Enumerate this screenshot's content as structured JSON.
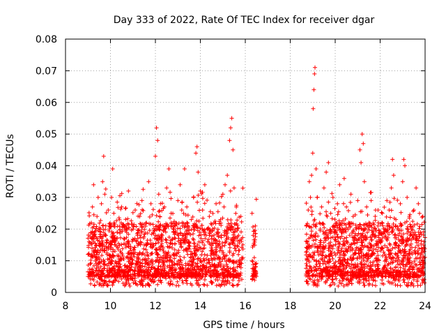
{
  "chart_data": {
    "type": "scatter",
    "title": "Day 333 of 2022, Rate Of TEC Index for receiver dgar",
    "xlabel": "GPS time / hours",
    "ylabel": "ROTI / TECUs",
    "xlim": [
      8,
      24
    ],
    "ylim": [
      0,
      0.08
    ],
    "xticks": [
      8,
      10,
      12,
      14,
      16,
      18,
      20,
      22,
      24
    ],
    "xtick_labels": [
      "8",
      "10",
      "12",
      "14",
      "16",
      "18",
      "20",
      "22",
      "24"
    ],
    "yticks": [
      0,
      0.01,
      0.02,
      0.03,
      0.04,
      0.05,
      0.06,
      0.07,
      0.08
    ],
    "ytick_labels": [
      "0",
      "0.01",
      "0.02",
      "0.03",
      "0.04",
      "0.05",
      "0.06",
      "0.07",
      "0.08"
    ],
    "grid": true,
    "marker": "+",
    "color": "#ff0000",
    "series": [
      {
        "name": "ROTI",
        "points": [
          [
            9.0,
            0.012
          ],
          [
            9.05,
            0.016
          ],
          [
            9.1,
            0.009
          ],
          [
            9.15,
            0.022
          ],
          [
            9.2,
            0.027
          ],
          [
            9.25,
            0.034
          ],
          [
            9.3,
            0.019
          ],
          [
            9.35,
            0.011
          ],
          [
            9.4,
            0.024
          ],
          [
            9.45,
            0.03
          ],
          [
            9.5,
            0.015
          ],
          [
            9.55,
            0.02
          ],
          [
            9.6,
            0.028
          ],
          [
            9.65,
            0.035
          ],
          [
            9.7,
            0.043
          ],
          [
            9.75,
            0.031
          ],
          [
            9.8,
            0.018
          ],
          [
            9.85,
            0.012
          ],
          [
            9.9,
            0.026
          ],
          [
            9.95,
            0.021
          ],
          [
            10.0,
            0.016
          ],
          [
            10.05,
            0.03
          ],
          [
            10.1,
            0.039
          ],
          [
            10.15,
            0.025
          ],
          [
            10.2,
            0.013
          ],
          [
            10.3,
            0.019
          ],
          [
            10.4,
            0.023
          ],
          [
            10.5,
            0.027
          ],
          [
            10.6,
            0.017
          ],
          [
            10.7,
            0.021
          ],
          [
            10.8,
            0.032
          ],
          [
            10.9,
            0.014
          ],
          [
            11.0,
            0.02
          ],
          [
            11.1,
            0.026
          ],
          [
            11.2,
            0.018
          ],
          [
            11.3,
            0.024
          ],
          [
            11.4,
            0.029
          ],
          [
            11.5,
            0.015
          ],
          [
            11.6,
            0.022
          ],
          [
            11.7,
            0.035
          ],
          [
            11.8,
            0.028
          ],
          [
            11.9,
            0.019
          ],
          [
            12.0,
            0.043
          ],
          [
            12.05,
            0.052
          ],
          [
            12.1,
            0.048
          ],
          [
            12.15,
            0.031
          ],
          [
            12.2,
            0.024
          ],
          [
            12.3,
            0.018
          ],
          [
            12.4,
            0.027
          ],
          [
            12.5,
            0.033
          ],
          [
            12.6,
            0.039
          ],
          [
            12.7,
            0.025
          ],
          [
            12.8,
            0.019
          ],
          [
            12.9,
            0.022
          ],
          [
            13.0,
            0.029
          ],
          [
            13.1,
            0.034
          ],
          [
            13.2,
            0.021
          ],
          [
            13.3,
            0.039
          ],
          [
            13.4,
            0.027
          ],
          [
            13.5,
            0.016
          ],
          [
            13.6,
            0.023
          ],
          [
            13.7,
            0.03
          ],
          [
            13.8,
            0.044
          ],
          [
            13.85,
            0.046
          ],
          [
            13.9,
            0.038
          ],
          [
            14.0,
            0.032
          ],
          [
            14.1,
            0.026
          ],
          [
            14.2,
            0.034
          ],
          [
            14.3,
            0.02
          ],
          [
            14.4,
            0.024
          ],
          [
            14.5,
            0.017
          ],
          [
            14.6,
            0.022
          ],
          [
            14.7,
            0.028
          ],
          [
            14.8,
            0.019
          ],
          [
            14.9,
            0.023
          ],
          [
            15.0,
            0.031
          ],
          [
            15.05,
            0.027
          ],
          [
            15.1,
            0.034
          ],
          [
            15.2,
            0.037
          ],
          [
            15.3,
            0.048
          ],
          [
            15.35,
            0.052
          ],
          [
            15.4,
            0.055
          ],
          [
            15.45,
            0.045
          ],
          [
            15.5,
            0.033
          ],
          [
            15.6,
            0.027
          ],
          [
            15.7,
            0.018
          ],
          [
            15.8,
            0.024
          ],
          [
            16.3,
            0.025
          ],
          [
            16.35,
            0.018
          ],
          [
            16.4,
            0.011
          ],
          [
            16.45,
            0.008
          ],
          [
            18.75,
            0.014
          ],
          [
            18.8,
            0.026
          ],
          [
            18.85,
            0.035
          ],
          [
            18.9,
            0.03
          ],
          [
            18.95,
            0.037
          ],
          [
            19.0,
            0.044
          ],
          [
            19.02,
            0.058
          ],
          [
            19.05,
            0.064
          ],
          [
            19.08,
            0.069
          ],
          [
            19.1,
            0.071
          ],
          [
            19.15,
            0.039
          ],
          [
            19.2,
            0.03
          ],
          [
            19.3,
            0.022
          ],
          [
            19.4,
            0.027
          ],
          [
            19.5,
            0.033
          ],
          [
            19.6,
            0.038
          ],
          [
            19.7,
            0.041
          ],
          [
            19.8,
            0.025
          ],
          [
            19.9,
            0.03
          ],
          [
            20.0,
            0.021
          ],
          [
            20.1,
            0.028
          ],
          [
            20.2,
            0.034
          ],
          [
            20.3,
            0.019
          ],
          [
            20.4,
            0.036
          ],
          [
            20.5,
            0.027
          ],
          [
            20.6,
            0.022
          ],
          [
            20.7,
            0.031
          ],
          [
            20.8,
            0.024
          ],
          [
            20.9,
            0.018
          ],
          [
            21.0,
            0.029
          ],
          [
            21.1,
            0.045
          ],
          [
            21.15,
            0.041
          ],
          [
            21.2,
            0.05
          ],
          [
            21.25,
            0.047
          ],
          [
            21.3,
            0.035
          ],
          [
            21.4,
            0.027
          ],
          [
            21.5,
            0.022
          ],
          [
            21.6,
            0.029
          ],
          [
            21.7,
            0.018
          ],
          [
            21.8,
            0.026
          ],
          [
            21.9,
            0.021
          ],
          [
            22.0,
            0.016
          ],
          [
            22.1,
            0.025
          ],
          [
            22.2,
            0.019
          ],
          [
            22.3,
            0.029
          ],
          [
            22.4,
            0.026
          ],
          [
            22.5,
            0.033
          ],
          [
            22.55,
            0.042
          ],
          [
            22.6,
            0.037
          ],
          [
            22.7,
            0.023
          ],
          [
            22.8,
            0.018
          ],
          [
            22.9,
            0.028
          ],
          [
            23.0,
            0.035
          ],
          [
            23.05,
            0.042
          ],
          [
            23.1,
            0.04
          ],
          [
            23.2,
            0.03
          ],
          [
            23.3,
            0.024
          ],
          [
            23.4,
            0.02
          ],
          [
            23.5,
            0.026
          ],
          [
            23.6,
            0.033
          ],
          [
            23.7,
            0.028
          ],
          [
            23.8,
            0.019
          ],
          [
            23.9,
            0.024
          ],
          [
            23.95,
            0.016
          ],
          [
            9.2,
            0.006
          ],
          [
            9.6,
            0.004
          ],
          [
            10.0,
            0.007
          ],
          [
            10.6,
            0.005
          ],
          [
            11.2,
            0.006
          ],
          [
            11.8,
            0.004
          ],
          [
            12.4,
            0.007
          ],
          [
            13.0,
            0.005
          ],
          [
            13.6,
            0.006
          ],
          [
            14.2,
            0.004
          ],
          [
            14.8,
            0.006
          ],
          [
            15.3,
            0.003
          ],
          [
            15.6,
            0.005
          ],
          [
            19.3,
            0.005
          ],
          [
            19.9,
            0.004
          ],
          [
            20.5,
            0.006
          ],
          [
            21.1,
            0.005
          ],
          [
            21.7,
            0.004
          ],
          [
            22.3,
            0.006
          ],
          [
            22.9,
            0.005
          ],
          [
            23.5,
            0.004
          ],
          [
            23.9,
            0.006
          ]
        ],
        "density_band": {
          "description": "dense cluster of points with ROTI mostly between 0.005 and 0.02 TECUs during the tracked intervals",
          "segments": [
            [
              9.0,
              15.9
            ],
            [
              16.3,
              16.5
            ],
            [
              18.7,
              24.0
            ]
          ],
          "typical_range": [
            0.005,
            0.022
          ]
        }
      }
    ]
  }
}
